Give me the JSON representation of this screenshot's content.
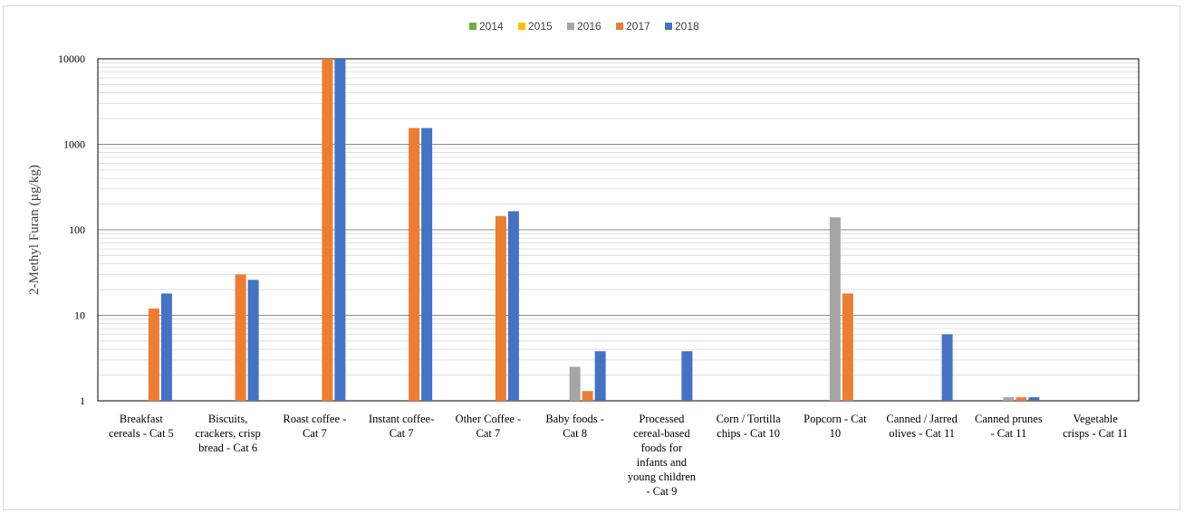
{
  "chart_data": {
    "type": "bar",
    "title": "",
    "xlabel": "",
    "ylabel": "2-Methyl Furan (µg/kg)",
    "yscale": "log",
    "ylim": [
      1,
      10000
    ],
    "yticks": [
      {
        "value": 1,
        "label": "1"
      },
      {
        "value": 10,
        "label": "10"
      },
      {
        "value": 100,
        "label": "100"
      },
      {
        "value": 1000,
        "label": "1000"
      },
      {
        "value": 10000,
        "label": "10000"
      }
    ],
    "grid": "major and minor horizontal gridlines",
    "legend_position": "top",
    "categories": [
      [
        "Breakfast",
        "cereals - Cat 5"
      ],
      [
        "Biscuits,",
        "crackers, crisp",
        "bread - Cat 6"
      ],
      [
        "Roast coffee -",
        "Cat 7"
      ],
      [
        "Instant coffee-",
        "Cat 7"
      ],
      [
        "Other Coffee -",
        "Cat 7"
      ],
      [
        "Baby foods -",
        "Cat 8"
      ],
      [
        "Processed",
        "cereal-based",
        "foods for",
        "infants and",
        "young children",
        "- Cat 9"
      ],
      [
        "Corn / Tortilla",
        "chips - Cat 10"
      ],
      [
        "Popcorn - Cat",
        "10"
      ],
      [
        "Canned / Jarred",
        "olives - Cat 11"
      ],
      [
        "Canned prunes",
        "- Cat 11"
      ],
      [
        "Vegetable",
        "crisps - Cat 11"
      ]
    ],
    "series": [
      {
        "name": "2014",
        "color": "#70ad47",
        "values": [
          null,
          null,
          null,
          null,
          null,
          null,
          null,
          null,
          null,
          null,
          null,
          null
        ]
      },
      {
        "name": "2015",
        "color": "#ffc000",
        "values": [
          null,
          null,
          null,
          null,
          null,
          null,
          null,
          null,
          null,
          null,
          null,
          null
        ]
      },
      {
        "name": "2016",
        "color": "#a5a5a5",
        "values": [
          null,
          null,
          null,
          null,
          null,
          2.5,
          null,
          null,
          140,
          null,
          1.1,
          null
        ]
      },
      {
        "name": "2017",
        "color": "#ed7d31",
        "values": [
          12,
          30,
          10000,
          1550,
          145,
          1.3,
          null,
          null,
          18,
          null,
          1.1,
          null
        ]
      },
      {
        "name": "2018",
        "color": "#4472c4",
        "values": [
          18,
          26,
          10000,
          1550,
          165,
          3.8,
          3.8,
          null,
          null,
          6,
          1.1,
          null
        ]
      }
    ]
  }
}
